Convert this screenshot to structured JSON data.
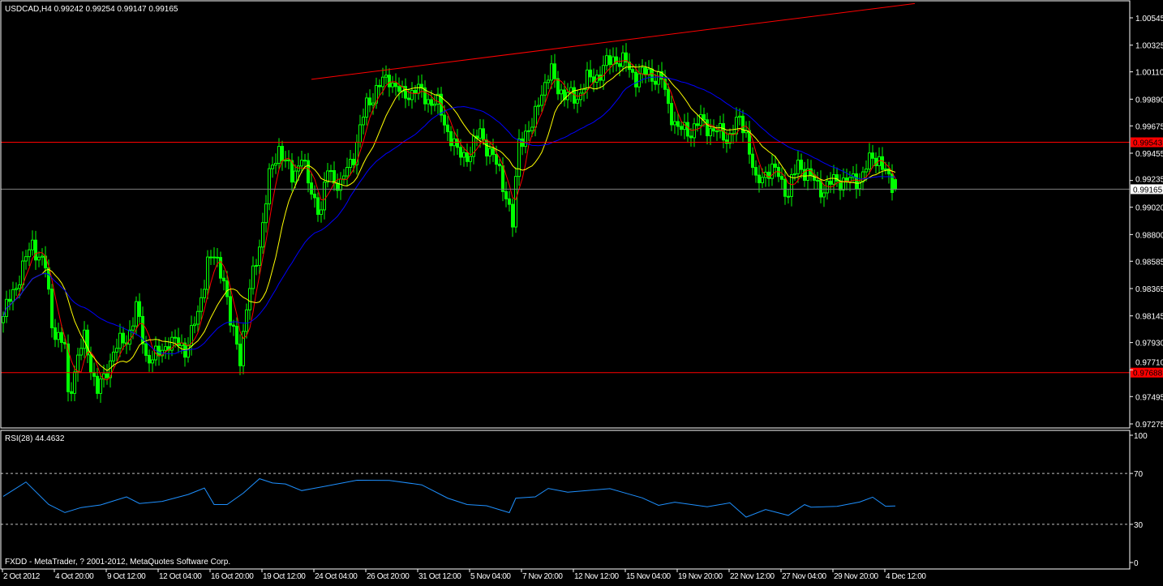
{
  "header": {
    "symbol_info": "USDCAD,H4  0.99242 0.99254 0.99147 0.99165"
  },
  "footer": {
    "copyright": "FXDD - MetaTrader, ? 2001-2012, MetaQuotes Software Corp."
  },
  "colors": {
    "background": "#000000",
    "frame": "#ffffff",
    "candle": "#00ff00",
    "ma_fast": "#ff0000",
    "ma_mid": "#ffff00",
    "ma_slow": "#0000ff",
    "rsi": "#1e90ff",
    "hline": "#ff0000",
    "bid_line": "#808080"
  },
  "chart_data": [
    {
      "type": "candlestick",
      "symbol": "USDCAD",
      "timeframe": "H4",
      "ylim": [
        0.97275,
        1.00545
      ],
      "y_ticks": [
        "1.00545",
        "1.00325",
        "1.00110",
        "0.99890",
        "0.99675",
        "0.99455",
        "0.99235",
        "0.99020",
        "0.98800",
        "0.98585",
        "0.98365",
        "0.98145",
        "0.97930",
        "0.97710",
        "0.97495",
        "0.97275"
      ],
      "x_ticks": [
        {
          "bar": 0,
          "label": "2 Oct 2012"
        },
        {
          "bar": 16,
          "label": "4 Oct 20:00"
        },
        {
          "bar": 32,
          "label": "9 Oct 12:00"
        },
        {
          "bar": 48,
          "label": "12 Oct 04:00"
        },
        {
          "bar": 64,
          "label": "16 Oct 20:00"
        },
        {
          "bar": 80,
          "label": "19 Oct 12:00"
        },
        {
          "bar": 96,
          "label": "24 Oct 04:00"
        },
        {
          "bar": 112,
          "label": "26 Oct 20:00"
        },
        {
          "bar": 128,
          "label": "31 Oct 12:00"
        },
        {
          "bar": 144,
          "label": "5 Nov 04:00"
        },
        {
          "bar": 160,
          "label": "7 Nov 20:00"
        },
        {
          "bar": 176,
          "label": "12 Nov 12:00"
        },
        {
          "bar": 192,
          "label": "15 Nov 04:00"
        },
        {
          "bar": 208,
          "label": "19 Nov 20:00"
        },
        {
          "bar": 224,
          "label": "22 Nov 12:00"
        },
        {
          "bar": 240,
          "label": "27 Nov 04:00"
        },
        {
          "bar": 256,
          "label": "29 Nov 20:00"
        },
        {
          "bar": 272,
          "label": "4 Dec 12:00"
        }
      ],
      "last_ohlc": {
        "open": 0.99242,
        "high": 0.99254,
        "low": 0.99147,
        "close": 0.99165
      },
      "close_path": [
        [
          0,
          0.9814
        ],
        [
          4,
          0.984
        ],
        [
          9,
          0.9873
        ],
        [
          13,
          0.9853
        ],
        [
          15,
          0.9808
        ],
        [
          19,
          0.9788
        ],
        [
          20,
          0.9749
        ],
        [
          23,
          0.9782
        ],
        [
          25,
          0.9795
        ],
        [
          29,
          0.9755
        ],
        [
          31,
          0.9762
        ],
        [
          34,
          0.9788
        ],
        [
          38,
          0.9795
        ],
        [
          41,
          0.9821
        ],
        [
          44,
          0.9782
        ],
        [
          48,
          0.9782
        ],
        [
          51,
          0.9795
        ],
        [
          56,
          0.9788
        ],
        [
          60,
          0.9814
        ],
        [
          63,
          0.986
        ],
        [
          65,
          0.986
        ],
        [
          68,
          0.9847
        ],
        [
          70,
          0.9808
        ],
        [
          73,
          0.9782
        ],
        [
          75,
          0.9821
        ],
        [
          79,
          0.9873
        ],
        [
          82,
          0.9925
        ],
        [
          85,
          0.9951
        ],
        [
          89,
          0.9925
        ],
        [
          92,
          0.9945
        ],
        [
          94,
          0.9919
        ],
        [
          98,
          0.9899
        ],
        [
          100,
          0.9932
        ],
        [
          104,
          0.9919
        ],
        [
          108,
          0.9945
        ],
        [
          112,
          0.9984
        ],
        [
          115,
          0.9997
        ],
        [
          119,
          1.0007
        ],
        [
          123,
          0.9991
        ],
        [
          127,
          0.9997
        ],
        [
          130,
          0.9991
        ],
        [
          134,
          0.9984
        ],
        [
          137,
          0.9964
        ],
        [
          140,
          0.9945
        ],
        [
          144,
          0.9945
        ],
        [
          147,
          0.9964
        ],
        [
          150,
          0.9945
        ],
        [
          153,
          0.9932
        ],
        [
          155,
          0.9912
        ],
        [
          157,
          0.9886
        ],
        [
          159,
          0.9958
        ],
        [
          163,
          0.9964
        ],
        [
          165,
          0.9991
        ],
        [
          169,
          1.001
        ],
        [
          173,
          0.9991
        ],
        [
          177,
          0.9991
        ],
        [
          180,
          1.0004
        ],
        [
          184,
          1.001
        ],
        [
          188,
          1.0023
        ],
        [
          192,
          1.0017
        ],
        [
          195,
          1.0007
        ],
        [
          199,
          1.001
        ],
        [
          203,
          1.0004
        ],
        [
          205,
          0.9984
        ],
        [
          208,
          0.9964
        ],
        [
          212,
          0.9964
        ],
        [
          215,
          0.9971
        ],
        [
          219,
          0.9964
        ],
        [
          223,
          0.9958
        ],
        [
          227,
          0.9971
        ],
        [
          229,
          0.9964
        ],
        [
          232,
          0.9919
        ],
        [
          235,
          0.9932
        ],
        [
          239,
          0.9929
        ],
        [
          242,
          0.9912
        ],
        [
          245,
          0.9938
        ],
        [
          249,
          0.9925
        ],
        [
          253,
          0.9916
        ],
        [
          257,
          0.9925
        ],
        [
          260,
          0.9922
        ],
        [
          264,
          0.9925
        ],
        [
          268,
          0.9942
        ],
        [
          270,
          0.9942
        ],
        [
          273,
          0.9922
        ],
        [
          275,
          0.99165
        ]
      ],
      "moving_averages": [
        {
          "color": "red"
        },
        {
          "color": "yellow"
        },
        {
          "color": "blue"
        }
      ],
      "horizontal_lines": [
        {
          "price": 0.99543,
          "label": "0.99543",
          "color": "red"
        },
        {
          "price": 0.97688,
          "label": "0.97688",
          "color": "red"
        },
        {
          "price": 0.99165,
          "label": "0.99165",
          "color": "gray",
          "type": "bid"
        }
      ],
      "trendline": {
        "start": {
          "bar": 95,
          "price": 1.0005
        },
        "end": {
          "bar": 281,
          "price": 1.0066
        },
        "color": "red"
      }
    },
    {
      "type": "line",
      "title": "RSI(28) 44.4632",
      "ylim": [
        0,
        100
      ],
      "y_ticks": [
        "100",
        "70",
        "30",
        "0"
      ],
      "levels": [
        70,
        30
      ],
      "series": [
        {
          "name": "RSI(28)",
          "points": [
            [
              0,
              52
            ],
            [
              7,
              62
            ],
            [
              14,
              47
            ],
            [
              19,
              38
            ],
            [
              24,
              43
            ],
            [
              30,
              45
            ],
            [
              38,
              53
            ],
            [
              42,
              46
            ],
            [
              49,
              47
            ],
            [
              57,
              53
            ],
            [
              62,
              60
            ],
            [
              65,
              47
            ],
            [
              69,
              45
            ],
            [
              74,
              56
            ],
            [
              79,
              65
            ],
            [
              83,
              64
            ],
            [
              87,
              61
            ],
            [
              92,
              58
            ],
            [
              99,
              59
            ],
            [
              109,
              64
            ],
            [
              119,
              66
            ],
            [
              129,
              60
            ],
            [
              137,
              52
            ],
            [
              143,
              47
            ],
            [
              149,
              46
            ],
            [
              156,
              38
            ],
            [
              158,
              52
            ],
            [
              164,
              53
            ],
            [
              168,
              57
            ],
            [
              174,
              54
            ],
            [
              187,
              58
            ],
            [
              197,
              52
            ],
            [
              202,
              45
            ],
            [
              207,
              46
            ],
            [
              217,
              44
            ],
            [
              224,
              48
            ],
            [
              229,
              36
            ],
            [
              235,
              42
            ],
            [
              242,
              38
            ],
            [
              247,
              46
            ],
            [
              249,
              42
            ],
            [
              257,
              45
            ],
            [
              264,
              46
            ],
            [
              268,
              52
            ],
            [
              272,
              45
            ],
            [
              275,
              44.46
            ]
          ]
        }
      ]
    }
  ]
}
